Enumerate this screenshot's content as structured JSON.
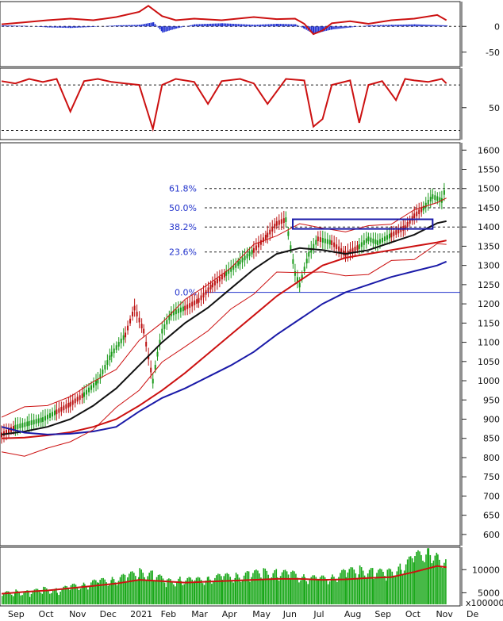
{
  "chart_data": [
    {
      "type": "line",
      "panel": "macd",
      "yticks": [
        "0",
        "-50"
      ],
      "ylim": [
        -75,
        45
      ],
      "series": [
        {
          "kind": "histogram",
          "color": "#1f2fd0",
          "x": [
            0,
            0.05,
            0.1,
            0.15,
            0.2,
            0.25,
            0.3,
            0.33,
            0.35,
            0.38,
            0.42,
            0.48,
            0.55,
            0.6,
            0.64,
            0.66,
            0.68,
            0.7,
            0.72,
            0.76,
            0.8,
            0.85,
            0.9,
            0.97
          ],
          "values": [
            2,
            1,
            -2,
            -3,
            -1,
            2,
            3,
            8,
            -12,
            -4,
            4,
            6,
            3,
            5,
            4,
            -5,
            -15,
            -10,
            -6,
            -2,
            2,
            3,
            4,
            2
          ]
        },
        {
          "kind": "line",
          "color": "#cc1111",
          "x": [
            0,
            0.05,
            0.1,
            0.15,
            0.2,
            0.25,
            0.3,
            0.32,
            0.35,
            0.38,
            0.42,
            0.48,
            0.55,
            0.6,
            0.64,
            0.66,
            0.68,
            0.7,
            0.72,
            0.76,
            0.8,
            0.85,
            0.9,
            0.95,
            0.97
          ],
          "values": [
            4,
            8,
            12,
            15,
            12,
            18,
            28,
            40,
            20,
            12,
            15,
            12,
            18,
            14,
            15,
            5,
            -15,
            -8,
            6,
            10,
            5,
            12,
            15,
            22,
            12
          ]
        }
      ]
    },
    {
      "type": "line",
      "panel": "stochastic",
      "yticks": [
        "50"
      ],
      "ylim": [
        10,
        100
      ],
      "hlines": [
        80,
        20
      ],
      "series": [
        {
          "kind": "line",
          "color": "#cc1111",
          "x": [
            0,
            0.03,
            0.06,
            0.09,
            0.12,
            0.15,
            0.18,
            0.21,
            0.24,
            0.27,
            0.3,
            0.33,
            0.35,
            0.38,
            0.42,
            0.45,
            0.48,
            0.52,
            0.55,
            0.58,
            0.62,
            0.66,
            0.68,
            0.7,
            0.72,
            0.76,
            0.78,
            0.8,
            0.83,
            0.86,
            0.88,
            0.9,
            0.93,
            0.96,
            0.97
          ],
          "values": [
            85,
            82,
            88,
            84,
            88,
            45,
            85,
            88,
            84,
            82,
            80,
            22,
            80,
            88,
            84,
            55,
            85,
            88,
            82,
            55,
            88,
            86,
            25,
            35,
            80,
            86,
            30,
            80,
            85,
            60,
            88,
            86,
            84,
            88,
            82
          ]
        }
      ]
    },
    {
      "type": "line",
      "panel": "price",
      "yticks": [
        "1600",
        "1550",
        "1500",
        "1450",
        "1400",
        "1350",
        "1300",
        "1250",
        "1200",
        "1150",
        "1100",
        "1050",
        "1000",
        "950",
        "900",
        "850",
        "800",
        "750",
        "700",
        "650",
        "600"
      ],
      "ylim": [
        575,
        1615
      ],
      "xticks": [
        "Sep",
        "Oct",
        "Nov",
        "Dec",
        "2021",
        "Feb",
        "Mar",
        "Apr",
        "May",
        "Jun",
        "Jul",
        "Aug",
        "Sep",
        "Oct",
        "Nov",
        "De"
      ],
      "fib_levels": [
        {
          "label": "61.8%",
          "value": 1500
        },
        {
          "label": "50.0%",
          "value": 1450
        },
        {
          "label": "38.2%",
          "value": 1400
        },
        {
          "label": "23.6%",
          "value": 1335
        },
        {
          "label": "0.0%",
          "value": 1230
        }
      ],
      "series": [
        {
          "kind": "price",
          "color": "#1a8a1a",
          "x": [
            0,
            0.03,
            0.06,
            0.09,
            0.12,
            0.15,
            0.18,
            0.21,
            0.24,
            0.27,
            0.29,
            0.31,
            0.33,
            0.34,
            0.35,
            0.37,
            0.4,
            0.43,
            0.46,
            0.49,
            0.52,
            0.55,
            0.58,
            0.6,
            0.62,
            0.64,
            0.65,
            0.67,
            0.69,
            0.72,
            0.75,
            0.78,
            0.8,
            0.82,
            0.85,
            0.88,
            0.9,
            0.92,
            0.94,
            0.96,
            0.97
          ],
          "values": [
            860,
            880,
            890,
            900,
            920,
            940,
            965,
            1000,
            1070,
            1120,
            1190,
            1130,
            1000,
            1070,
            1130,
            1175,
            1190,
            1210,
            1250,
            1280,
            1310,
            1340,
            1380,
            1410,
            1420,
            1280,
            1250,
            1330,
            1370,
            1360,
            1330,
            1350,
            1370,
            1360,
            1380,
            1400,
            1430,
            1450,
            1480,
            1470,
            1510
          ]
        },
        {
          "kind": "line",
          "name": "",
          "color": "#111111",
          "x": [
            0,
            0.05,
            0.1,
            0.15,
            0.2,
            0.25,
            0.3,
            0.35,
            0.4,
            0.45,
            0.5,
            0.55,
            0.6,
            0.65,
            0.7,
            0.75,
            0.8,
            0.85,
            0.9,
            0.95,
            0.97
          ],
          "values": [
            860,
            868,
            880,
            900,
            935,
            980,
            1040,
            1100,
            1150,
            1190,
            1240,
            1290,
            1330,
            1345,
            1340,
            1330,
            1340,
            1360,
            1380,
            1410,
            1415
          ]
        },
        {
          "kind": "line",
          "color": "#cc1111",
          "x": [
            0,
            0.05,
            0.1,
            0.15,
            0.2,
            0.25,
            0.3,
            0.35,
            0.4,
            0.45,
            0.5,
            0.55,
            0.6,
            0.65,
            0.7,
            0.75,
            0.8,
            0.85,
            0.9,
            0.95,
            0.97
          ],
          "values": [
            850,
            852,
            858,
            866,
            880,
            900,
            935,
            975,
            1020,
            1070,
            1120,
            1170,
            1220,
            1260,
            1300,
            1320,
            1330,
            1340,
            1350,
            1360,
            1365
          ]
        },
        {
          "kind": "line",
          "color": "#1a1aa8",
          "x": [
            0,
            0.05,
            0.1,
            0.15,
            0.2,
            0.25,
            0.3,
            0.35,
            0.4,
            0.45,
            0.5,
            0.55,
            0.6,
            0.65,
            0.7,
            0.75,
            0.8,
            0.85,
            0.9,
            0.95,
            0.97
          ],
          "values": [
            880,
            865,
            860,
            862,
            868,
            880,
            920,
            955,
            980,
            1010,
            1040,
            1075,
            1120,
            1160,
            1200,
            1230,
            1250,
            1270,
            1285,
            1300,
            1310
          ]
        }
      ]
    },
    {
      "type": "bar",
      "panel": "volume",
      "yticks": [
        "10000",
        "5000"
      ],
      "axis_unit": "x100000",
      "ylim": [
        2500,
        14500
      ],
      "series": [
        {
          "kind": "volume",
          "color": "#1aa81a",
          "x": [
            0,
            0.03,
            0.06,
            0.09,
            0.12,
            0.15,
            0.18,
            0.21,
            0.24,
            0.27,
            0.3,
            0.33,
            0.36,
            0.39,
            0.42,
            0.45,
            0.48,
            0.51,
            0.54,
            0.57,
            0.6,
            0.63,
            0.66,
            0.69,
            0.72,
            0.75,
            0.78,
            0.81,
            0.84,
            0.87,
            0.9,
            0.93,
            0.95,
            0.97
          ],
          "values": [
            4500,
            5000,
            4800,
            5500,
            5200,
            6000,
            6500,
            7000,
            7500,
            8000,
            9000,
            8500,
            7000,
            7500,
            7200,
            7800,
            8000,
            8200,
            8500,
            9000,
            8800,
            8600,
            8000,
            7500,
            8000,
            9000,
            9500,
            9000,
            8800,
            10000,
            12000,
            13500,
            12000,
            11000
          ]
        },
        {
          "kind": "line",
          "color": "#cc1111",
          "x": [
            0,
            0.05,
            0.1,
            0.15,
            0.2,
            0.25,
            0.3,
            0.35,
            0.4,
            0.45,
            0.5,
            0.55,
            0.6,
            0.65,
            0.7,
            0.75,
            0.8,
            0.85,
            0.9,
            0.95,
            0.97
          ],
          "values": [
            4800,
            5200,
            5500,
            6000,
            6500,
            7000,
            7800,
            7500,
            7200,
            7400,
            7600,
            7800,
            8000,
            8000,
            7800,
            7900,
            8200,
            8400,
            9500,
            10800,
            10500
          ]
        }
      ]
    }
  ]
}
